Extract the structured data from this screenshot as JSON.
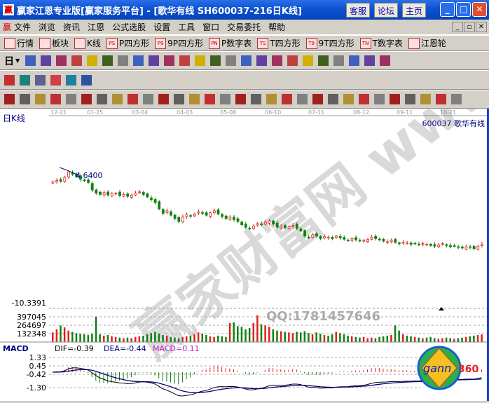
{
  "window": {
    "title": "赢家江恩专业版[赢家服务平台] - [歌华有线   SH600037-216日K线]",
    "buttons": [
      "客服",
      "论坛",
      "主页"
    ]
  },
  "menu": [
    "文件",
    "浏览",
    "资讯",
    "江恩",
    "公式选股",
    "设置",
    "工具",
    "窗口",
    "交易委托",
    "帮助"
  ],
  "toolbar1": [
    {
      "icon": "quotes-icon",
      "label": "行情"
    },
    {
      "icon": "sector-icon",
      "label": "板块"
    },
    {
      "icon": "kline-icon",
      "label": "K线"
    },
    {
      "icon": "PS",
      "label": "P四方形"
    },
    {
      "icon": "P9",
      "label": "9P四方形"
    },
    {
      "icon": "PN",
      "label": "P数字表"
    },
    {
      "icon": "TS",
      "label": "T四方形"
    },
    {
      "icon": "T9",
      "label": "9T四方形"
    },
    {
      "icon": "TN",
      "label": "T数字表"
    },
    {
      "icon": "gann-wheel-icon",
      "label": "江恩轮"
    }
  ],
  "period": "日",
  "chart": {
    "title": "日K线",
    "stock": "600037  歌华有线",
    "dates": [
      "12-21",
      "01-25",
      "03-04",
      "04-03",
      "05-08",
      "06-10",
      "07-11",
      "08-12",
      "09-11",
      "10-21"
    ],
    "high_label": "4.6400",
    "low_label": "-10.3391",
    "volume_ticks": [
      "397045",
      "264697",
      "132348"
    ],
    "macd_label": "MACD",
    "dif": "DIF=-0.39",
    "dea": "DEA=-0.44",
    "macd": "MACD=0.11",
    "macd_ticks": [
      "1.33",
      "0.45",
      "-0.42",
      "-1.30"
    ],
    "watermark": "赢家财富网 www.yingjia360.com",
    "qq": "QQ:1781457646",
    "logo": "gann360",
    "colors": {
      "up": "#e02020",
      "down": "#108010",
      "dif": "#000000",
      "dea": "#000080",
      "title": "#000080"
    },
    "closes": [
      4.48,
      4.5,
      4.49,
      4.55,
      4.64,
      4.6,
      4.56,
      4.52,
      4.5,
      4.47,
      4.35,
      4.3,
      4.28,
      4.31,
      4.27,
      4.29,
      4.3,
      4.26,
      4.28,
      4.25,
      4.27,
      4.3,
      4.32,
      4.28,
      4.24,
      4.2,
      4.15,
      4.05,
      3.98,
      4.02,
      3.95,
      3.9,
      3.85,
      3.92,
      3.96,
      3.94,
      3.97,
      4.0,
      3.98,
      3.95,
      3.99,
      4.02,
      3.97,
      3.93,
      3.9,
      3.92,
      3.88,
      3.85,
      3.8,
      3.76,
      3.74,
      3.78,
      3.82,
      3.8,
      3.84,
      3.86,
      3.81,
      3.76,
      3.78,
      3.75,
      3.77,
      3.79,
      3.74,
      3.7,
      3.62,
      3.6,
      3.64,
      3.62,
      3.58,
      3.61,
      3.6,
      3.58,
      3.62,
      3.59,
      3.57,
      3.55,
      3.58,
      3.56,
      3.54,
      3.55,
      3.57,
      3.6,
      3.58,
      3.56,
      3.54,
      3.53,
      3.55,
      3.52,
      3.5,
      3.52,
      3.51,
      3.49,
      3.5,
      3.48,
      3.5,
      3.49,
      3.47,
      3.46,
      3.48,
      3.5,
      3.47,
      3.45,
      3.46,
      3.44,
      3.43,
      3.45,
      3.44,
      3.42,
      3.46,
      3.49
    ],
    "volumes": [
      150000,
      200000,
      260000,
      230000,
      180000,
      160000,
      140000,
      130000,
      120000,
      110000,
      130000,
      400000,
      120000,
      100000,
      110000,
      90000,
      80000,
      70000,
      60000,
      70000,
      60000,
      80000,
      90000,
      100000,
      120000,
      140000,
      160000,
      130000,
      110000,
      100000,
      80000,
      70000,
      60000,
      80000,
      90000,
      100000,
      120000,
      150000,
      130000,
      110000,
      90000,
      80000,
      100000,
      90000,
      80000,
      300000,
      310000,
      250000,
      240000,
      200000,
      220000,
      300000,
      420000,
      280000,
      260000,
      240000,
      200000,
      180000,
      170000,
      160000,
      150000,
      140000,
      160000,
      150000,
      170000,
      140000,
      120000,
      150000,
      130000,
      110000,
      100000,
      120000,
      160000,
      140000,
      120000,
      100000,
      90000,
      80000,
      70000,
      80000,
      60000,
      70000,
      60000,
      80000,
      90000,
      100000,
      110000,
      260000,
      180000,
      120000,
      100000,
      90000,
      80000,
      70000,
      60000,
      70000,
      80000,
      60000,
      50000,
      60000,
      70000,
      60000,
      50000,
      60000,
      70000,
      80000,
      90000,
      100000,
      110000,
      120000
    ]
  }
}
